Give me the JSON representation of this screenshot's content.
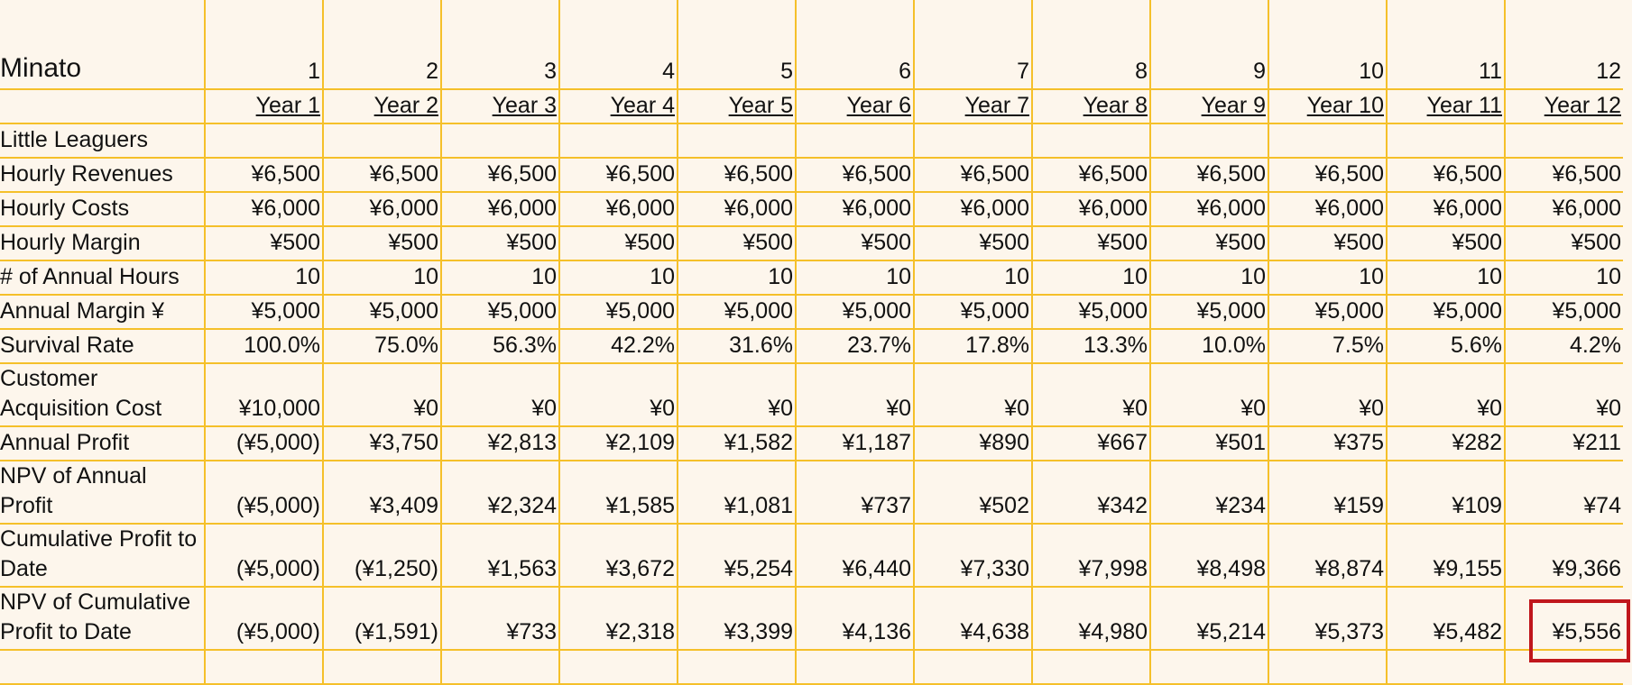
{
  "sheet": {
    "title": "Minato",
    "periods": [
      "1",
      "2",
      "3",
      "4",
      "5",
      "6",
      "7",
      "8",
      "9",
      "10",
      "11",
      "12"
    ],
    "years": [
      "Year 1",
      "Year 2",
      "Year 3",
      "Year 4",
      "Year 5",
      "Year 6",
      "Year 7",
      "Year 8",
      "Year 9",
      "Year 10",
      "Year 11",
      "Year 12"
    ],
    "rows": [
      {
        "label": "Little Leaguers",
        "values": [
          "",
          "",
          "",
          "",
          "",
          "",
          "",
          "",
          "",
          "",
          "",
          ""
        ]
      },
      {
        "label": "Hourly Revenues",
        "values": [
          "¥6,500",
          "¥6,500",
          "¥6,500",
          "¥6,500",
          "¥6,500",
          "¥6,500",
          "¥6,500",
          "¥6,500",
          "¥6,500",
          "¥6,500",
          "¥6,500",
          "¥6,500"
        ]
      },
      {
        "label": "Hourly Costs",
        "values": [
          "¥6,000",
          "¥6,000",
          "¥6,000",
          "¥6,000",
          "¥6,000",
          "¥6,000",
          "¥6,000",
          "¥6,000",
          "¥6,000",
          "¥6,000",
          "¥6,000",
          "¥6,000"
        ]
      },
      {
        "label": "Hourly Margin",
        "values": [
          "¥500",
          "¥500",
          "¥500",
          "¥500",
          "¥500",
          "¥500",
          "¥500",
          "¥500",
          "¥500",
          "¥500",
          "¥500",
          "¥500"
        ]
      },
      {
        "label": "# of Annual Hours",
        "values": [
          "10",
          "10",
          "10",
          "10",
          "10",
          "10",
          "10",
          "10",
          "10",
          "10",
          "10",
          "10"
        ]
      },
      {
        "label": "Annual Margin ¥",
        "values": [
          "¥5,000",
          "¥5,000",
          "¥5,000",
          "¥5,000",
          "¥5,000",
          "¥5,000",
          "¥5,000",
          "¥5,000",
          "¥5,000",
          "¥5,000",
          "¥5,000",
          "¥5,000"
        ]
      },
      {
        "label": "Survival Rate",
        "values": [
          "100.0%",
          "75.0%",
          "56.3%",
          "42.2%",
          "31.6%",
          "23.7%",
          "17.8%",
          "13.3%",
          "10.0%",
          "7.5%",
          "5.6%",
          "4.2%"
        ]
      },
      {
        "label": "Customer Acquisition Cost",
        "values": [
          "¥10,000",
          "¥0",
          "¥0",
          "¥0",
          "¥0",
          "¥0",
          "¥0",
          "¥0",
          "¥0",
          "¥0",
          "¥0",
          "¥0"
        ]
      },
      {
        "label": "Annual Profit",
        "values": [
          "(¥5,000)",
          "¥3,750",
          "¥2,813",
          "¥2,109",
          "¥1,582",
          "¥1,187",
          "¥890",
          "¥667",
          "¥501",
          "¥375",
          "¥282",
          "¥211"
        ]
      },
      {
        "label": "NPV of Annual Profit",
        "values": [
          "(¥5,000)",
          "¥3,409",
          "¥2,324",
          "¥1,585",
          "¥1,081",
          "¥737",
          "¥502",
          "¥342",
          "¥234",
          "¥159",
          "¥109",
          "¥74"
        ]
      },
      {
        "label": "Cumulative Profit to Date",
        "values": [
          "(¥5,000)",
          "(¥1,250)",
          "¥1,563",
          "¥3,672",
          "¥5,254",
          "¥6,440",
          "¥7,330",
          "¥7,998",
          "¥8,498",
          "¥8,874",
          "¥9,155",
          "¥9,366"
        ]
      },
      {
        "label": "NPV of Cumulative Profit to Date",
        "values": [
          "(¥5,000)",
          "(¥1,591)",
          "¥733",
          "¥2,318",
          "¥3,399",
          "¥4,136",
          "¥4,638",
          "¥4,980",
          "¥5,214",
          "¥5,373",
          "¥5,482",
          "¥5,556"
        ]
      }
    ],
    "highlight_color": "#c0161c",
    "grid_color": "#f5c02a",
    "background_color": "#fdf6ec"
  }
}
